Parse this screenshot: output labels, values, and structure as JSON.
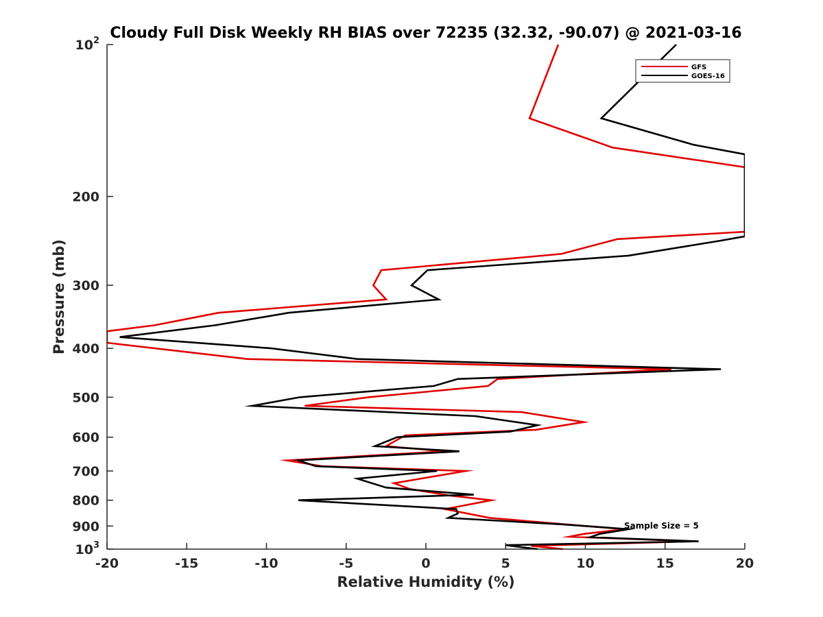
{
  "chart_data": {
    "type": "line",
    "title": "Cloudy Full Disk Weekly RH BIAS over 72235 (32.32, -90.07) @ 2021-03-16",
    "xlabel": "Relative Humidity (%)",
    "ylabel": "Pressure (mb)",
    "xlim": [
      -20,
      20
    ],
    "ylim": [
      100,
      1000
    ],
    "yscale": "log",
    "y_reversed": true,
    "grid": false,
    "x_ticks": [
      -20,
      -15,
      -10,
      -5,
      0,
      5,
      10,
      15,
      20
    ],
    "x_tick_labels": [
      "-20",
      "-15",
      "-10",
      "-5",
      "0",
      "5",
      "10",
      "15",
      "20"
    ],
    "y_ticks": [
      100,
      200,
      300,
      400,
      500,
      600,
      700,
      800,
      900,
      1000
    ],
    "y_tick_labels": [
      {
        "base": "10",
        "sup": "2"
      },
      {
        "base": "200",
        "sup": ""
      },
      {
        "base": "300",
        "sup": ""
      },
      {
        "base": "400",
        "sup": ""
      },
      {
        "base": "500",
        "sup": ""
      },
      {
        "base": "600",
        "sup": ""
      },
      {
        "base": "700",
        "sup": ""
      },
      {
        "base": "800",
        "sup": ""
      },
      {
        "base": "900",
        "sup": ""
      },
      {
        "base": "10",
        "sup": "3"
      }
    ],
    "legend": {
      "position": "top-right",
      "entries": [
        "GFS",
        "GOES-16"
      ]
    },
    "annotation": "Sample Size = 5",
    "series": [
      {
        "name": "GFS",
        "color": "#e00000",
        "points": [
          [
            8.6,
            1000
          ],
          [
            6.6,
            985
          ],
          [
            16.8,
            965
          ],
          [
            9.0,
            945
          ],
          [
            9.9,
            933
          ],
          [
            12.5,
            913
          ],
          [
            10.0,
            900
          ],
          [
            4.0,
            867
          ],
          [
            1.2,
            833
          ],
          [
            4.1,
            800
          ],
          [
            1.5,
            783
          ],
          [
            -1.0,
            760
          ],
          [
            -2.0,
            740
          ],
          [
            2.5,
            700
          ],
          [
            -6.5,
            685
          ],
          [
            -8.7,
            667
          ],
          [
            1.2,
            640
          ],
          [
            -2.5,
            625
          ],
          [
            -1.3,
            595
          ],
          [
            6.9,
            580
          ],
          [
            9.9,
            560
          ],
          [
            6.0,
            535
          ],
          [
            -7.6,
            520
          ],
          [
            -3.6,
            500
          ],
          [
            3.9,
            475
          ],
          [
            4.5,
            460
          ],
          [
            15.4,
            440
          ],
          [
            -11.2,
            420
          ],
          [
            -20,
            390
          ],
          [
            -20,
            370
          ],
          [
            -17.0,
            360
          ],
          [
            -13.0,
            340
          ],
          [
            -2.5,
            320
          ],
          [
            -3.3,
            300
          ],
          [
            -2.8,
            280
          ],
          [
            8.5,
            260
          ],
          [
            12.0,
            243
          ],
          [
            20,
            235
          ],
          [
            20,
            175
          ],
          [
            11.7,
            160
          ],
          [
            6.5,
            140
          ],
          [
            8.3,
            100
          ]
        ]
      },
      {
        "name": "GOES-16",
        "color": "#000000",
        "points": [
          [
            7.0,
            1000
          ],
          [
            5.0,
            982
          ],
          [
            17.1,
            965
          ],
          [
            10.3,
            947
          ],
          [
            10.9,
            933
          ],
          [
            12.7,
            913
          ],
          [
            8.5,
            893
          ],
          [
            1.4,
            867
          ],
          [
            2.0,
            850
          ],
          [
            1.9,
            833
          ],
          [
            -8.0,
            800
          ],
          [
            3.0,
            780
          ],
          [
            -2.5,
            755
          ],
          [
            -4.3,
            725
          ],
          [
            0.7,
            700
          ],
          [
            -6.9,
            685
          ],
          [
            -8.0,
            667
          ],
          [
            2.1,
            640
          ],
          [
            -3.2,
            625
          ],
          [
            -1.8,
            600
          ],
          [
            5.3,
            585
          ],
          [
            7.0,
            568
          ],
          [
            3.1,
            545
          ],
          [
            -10.9,
            520
          ],
          [
            -7.9,
            500
          ],
          [
            0.5,
            475
          ],
          [
            2.0,
            460
          ],
          [
            18.5,
            440
          ],
          [
            -4.3,
            420
          ],
          [
            -9.7,
            400
          ],
          [
            -19.2,
            380
          ],
          [
            -13.2,
            360
          ],
          [
            -8.6,
            340
          ],
          [
            0.8,
            320
          ],
          [
            -0.9,
            300
          ],
          [
            0.1,
            280
          ],
          [
            12.7,
            262
          ],
          [
            18.4,
            245
          ],
          [
            20,
            240
          ],
          [
            20,
            165
          ],
          [
            16.8,
            158
          ],
          [
            11.0,
            140
          ],
          [
            15.7,
            100
          ]
        ]
      }
    ]
  }
}
